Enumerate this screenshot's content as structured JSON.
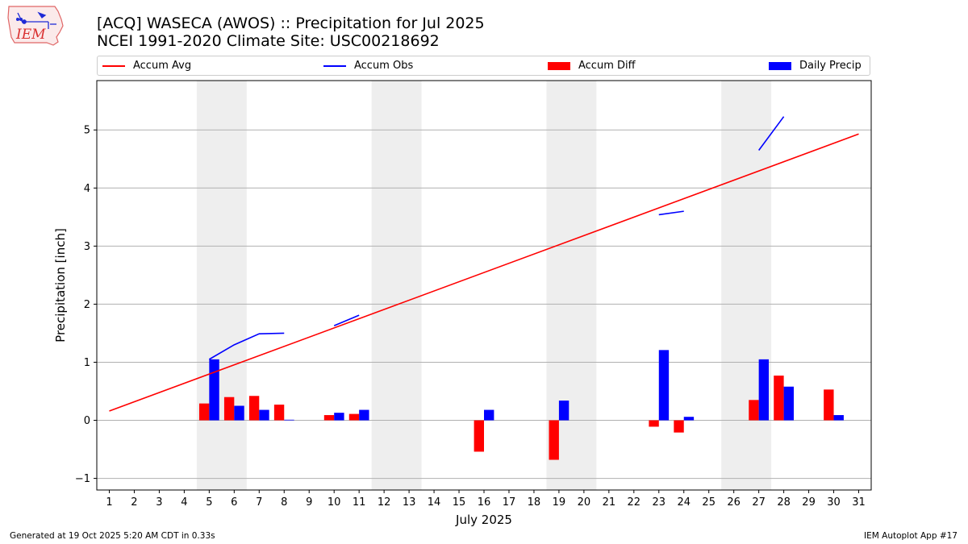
{
  "logo": {
    "text": "IEM"
  },
  "header": {
    "title_line1": "[ACQ] WASECA (AWOS) :: Precipitation for Jul 2025",
    "title_line2": "NCEI 1991-2020 Climate Site: USC00218692"
  },
  "legend": {
    "accum_avg": "Accum Avg",
    "accum_obs": "Accum Obs",
    "accum_diff": "Accum Diff",
    "daily_precip": "Daily Precip"
  },
  "colors": {
    "avg": "#ff0000",
    "obs": "#0000ff",
    "diff": "#ff0000",
    "daily": "#0000ff",
    "weekend_shade": "#eeeeee",
    "grid": "#b0b0b0"
  },
  "footer": {
    "generated": "Generated at 19 Oct 2025 5:20 AM CDT in 0.33s",
    "app": "IEM Autoplot App #17"
  },
  "chart_data": {
    "type": "bar",
    "xlabel": "July 2025",
    "ylabel": "Precipitation [inch]",
    "xlim": [
      0.5,
      31.5
    ],
    "ylim": [
      -1.2,
      5.85
    ],
    "grid": true,
    "legend_position": "top",
    "days": [
      1,
      2,
      3,
      4,
      5,
      6,
      7,
      8,
      9,
      10,
      11,
      12,
      13,
      14,
      15,
      16,
      17,
      18,
      19,
      20,
      21,
      22,
      23,
      24,
      25,
      26,
      27,
      28,
      29,
      30,
      31
    ],
    "yticks": [
      -1,
      0,
      1,
      2,
      3,
      4,
      5
    ],
    "shaded_days": [
      [
        5,
        6
      ],
      [
        12,
        13
      ],
      [
        19,
        20
      ],
      [
        26,
        27
      ]
    ],
    "series": [
      {
        "name": "Accum Avg",
        "kind": "line",
        "x": [
          1,
          31
        ],
        "values": [
          0.16,
          4.93
        ]
      },
      {
        "name": "Accum Obs",
        "kind": "line-segments",
        "segments": [
          {
            "x": [
              5,
              6,
              7,
              8
            ],
            "values": [
              1.05,
              1.3,
              1.49,
              1.5
            ]
          },
          {
            "x": [
              10,
              11
            ],
            "values": [
              1.63,
              1.81
            ]
          },
          {
            "x": [
              23,
              24
            ],
            "values": [
              3.54,
              3.6
            ]
          },
          {
            "x": [
              27,
              28
            ],
            "values": [
              4.65,
              5.23
            ]
          }
        ]
      },
      {
        "name": "Accum Diff",
        "kind": "bar",
        "x": [
          5,
          6,
          7,
          8,
          10,
          11,
          16,
          19,
          23,
          24,
          27,
          28,
          30
        ],
        "values": [
          0.29,
          0.4,
          0.42,
          0.27,
          0.09,
          0.11,
          -0.54,
          -0.68,
          -0.11,
          -0.21,
          0.35,
          0.77,
          0.53
        ]
      },
      {
        "name": "Daily Precip",
        "kind": "bar",
        "x": [
          5,
          6,
          7,
          8,
          10,
          11,
          16,
          19,
          23,
          24,
          27,
          28,
          30
        ],
        "values": [
          1.05,
          0.25,
          0.18,
          0.01,
          0.13,
          0.18,
          0.18,
          0.34,
          1.21,
          0.06,
          1.05,
          0.58,
          0.09
        ]
      }
    ]
  }
}
